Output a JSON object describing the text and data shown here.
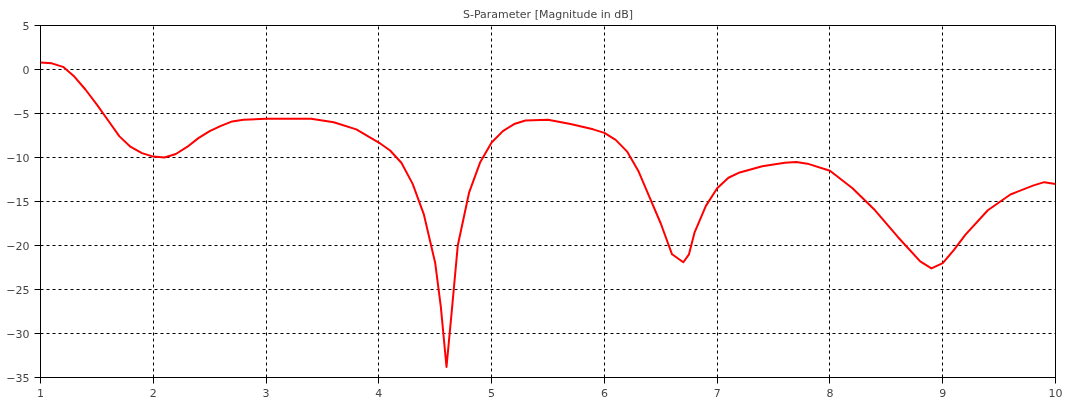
{
  "chart_data": {
    "type": "line",
    "title": "S-Parameter [Magnitude in dB]",
    "x": [
      1,
      1.1,
      1.2,
      1.3,
      1.4,
      1.5,
      1.6,
      1.7,
      1.8,
      1.9,
      2.0,
      2.1,
      2.2,
      2.3,
      2.4,
      2.5,
      2.6,
      2.7,
      2.8,
      3.0,
      3.2,
      3.4,
      3.6,
      3.8,
      4.0,
      4.1,
      4.2,
      4.3,
      4.4,
      4.5,
      4.55,
      4.6,
      4.65,
      4.7,
      4.8,
      4.9,
      5.0,
      5.1,
      5.2,
      5.3,
      5.5,
      5.7,
      5.9,
      6.0,
      6.1,
      6.2,
      6.3,
      6.4,
      6.5,
      6.6,
      6.7,
      6.75,
      6.8,
      6.9,
      7.0,
      7.1,
      7.2,
      7.4,
      7.6,
      7.7,
      7.8,
      8.0,
      8.2,
      8.4,
      8.6,
      8.8,
      8.9,
      9.0,
      9.1,
      9.2,
      9.4,
      9.6,
      9.8,
      9.9,
      10
    ],
    "series": [
      {
        "color": "#ff0000",
        "values": [
          0.8,
          0.7,
          0.3,
          -0.8,
          -2.3,
          -4.0,
          -5.8,
          -7.6,
          -8.8,
          -9.5,
          -9.9,
          -10.0,
          -9.6,
          -8.8,
          -7.8,
          -7.0,
          -6.4,
          -5.9,
          -5.7,
          -5.6,
          -5.6,
          -5.6,
          -6.0,
          -6.8,
          -8.3,
          -9.2,
          -10.6,
          -13,
          -16.5,
          -22,
          -27,
          -33.8,
          -27,
          -20,
          -14,
          -10.5,
          -8.3,
          -7,
          -6.2,
          -5.8,
          -5.7,
          -6.2,
          -6.8,
          -7.2,
          -8,
          -9.3,
          -11.5,
          -14.5,
          -17.5,
          -21,
          -21.9,
          -21,
          -18.5,
          -15.5,
          -13.5,
          -12.3,
          -11.7,
          -11,
          -10.6,
          -10.5,
          -10.7,
          -11.5,
          -13.5,
          -16,
          -19,
          -21.8,
          -22.6,
          -22,
          -20.5,
          -18.8,
          -16,
          -14.2,
          -13.2,
          -12.8,
          -13
        ]
      }
    ],
    "xlim": [
      1,
      10
    ],
    "xticks": [
      1,
      2,
      3,
      4,
      5,
      6,
      7,
      8,
      9,
      10
    ],
    "ylim": [
      -35,
      5
    ],
    "yticks": [
      -35,
      -30,
      -25,
      -20,
      -15,
      -10,
      -5,
      0,
      5
    ],
    "grid": true,
    "line_style": "solid",
    "marker": "none"
  }
}
